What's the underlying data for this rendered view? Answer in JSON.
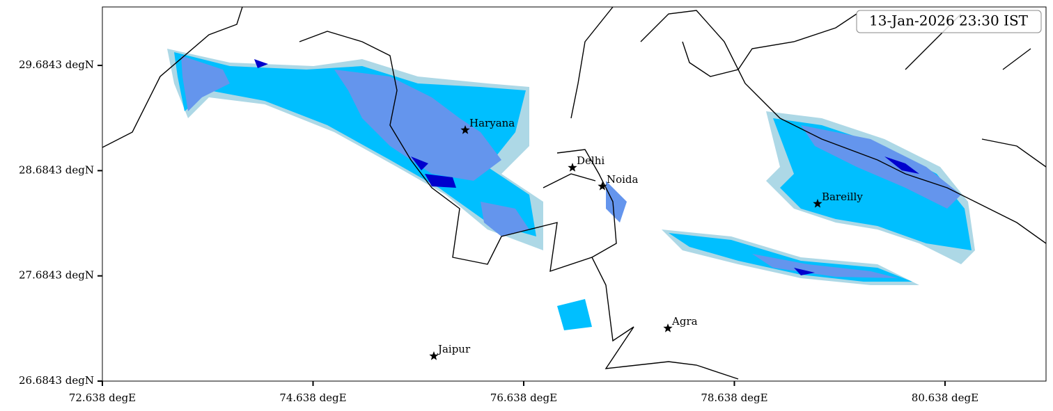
{
  "map": {
    "timestamp": "13-Jan-2026 23:30 IST",
    "xlim": [
      72.638,
      81.597
    ],
    "ylim": [
      26.6843,
      30.24
    ],
    "xticks": [
      {
        "value": 72.638,
        "label": "72.638 degE"
      },
      {
        "value": 74.638,
        "label": "74.638 degE"
      },
      {
        "value": 76.638,
        "label": "76.638 degE"
      },
      {
        "value": 78.638,
        "label": "78.638 degE"
      },
      {
        "value": 80.638,
        "label": "80.638 degE"
      }
    ],
    "yticks": [
      {
        "value": 26.6843,
        "label": "26.6843 degN"
      },
      {
        "value": 27.6843,
        "label": "27.6843 degN"
      },
      {
        "value": 28.6843,
        "label": "28.6843 degN"
      },
      {
        "value": 29.6843,
        "label": "29.6843 degN"
      }
    ],
    "cities": [
      {
        "name": "Haryana",
        "lon": 76.083,
        "lat": 29.07
      },
      {
        "name": "Delhi",
        "lon": 77.101,
        "lat": 28.713
      },
      {
        "name": "Noida",
        "lon": 77.385,
        "lat": 28.535
      },
      {
        "name": "Bareilly",
        "lon": 79.428,
        "lat": 28.37
      },
      {
        "name": "Agra",
        "lon": 78.007,
        "lat": 27.186
      },
      {
        "name": "Jaipur",
        "lon": 75.785,
        "lat": 26.922
      }
    ]
  }
}
